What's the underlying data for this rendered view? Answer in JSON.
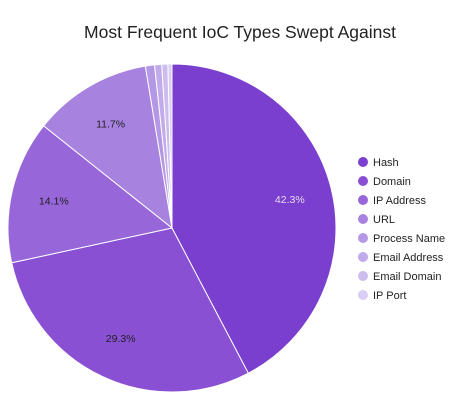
{
  "chart_data": {
    "type": "pie",
    "title": "Most Frequent IoC Types Swept Against",
    "legend_position": "right",
    "slices": [
      {
        "label": "Hash",
        "value": 42.3,
        "value_label": "42.3%",
        "color": "#7a3fce"
      },
      {
        "label": "Domain",
        "value": 29.3,
        "value_label": "29.3%",
        "color": "#8a50d3"
      },
      {
        "label": "IP Address",
        "value": 14.1,
        "value_label": "14.1%",
        "color": "#9766d9"
      },
      {
        "label": "URL",
        "value": 11.7,
        "value_label": "11.7%",
        "color": "#a782df"
      },
      {
        "label": "Process Name",
        "value": 0.9,
        "value_label": "",
        "color": "#b598e5"
      },
      {
        "label": "Email Address",
        "value": 0.7,
        "value_label": "",
        "color": "#c1abea"
      },
      {
        "label": "Email Domain",
        "value": 0.6,
        "value_label": "",
        "color": "#cdbdef"
      },
      {
        "label": "IP Port",
        "value": 0.4,
        "value_label": "",
        "color": "#d9cef4"
      }
    ]
  }
}
